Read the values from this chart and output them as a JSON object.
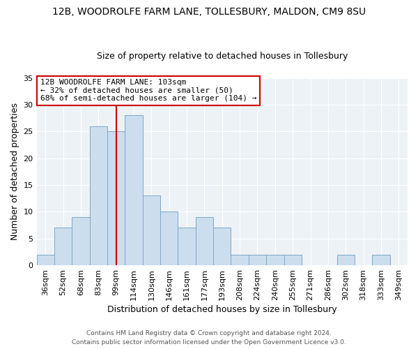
{
  "title": "12B, WOODROLFE FARM LANE, TOLLESBURY, MALDON, CM9 8SU",
  "subtitle": "Size of property relative to detached houses in Tollesbury",
  "xlabel": "Distribution of detached houses by size in Tollesbury",
  "ylabel": "Number of detached properties",
  "bar_labels": [
    "36sqm",
    "52sqm",
    "68sqm",
    "83sqm",
    "99sqm",
    "114sqm",
    "130sqm",
    "146sqm",
    "161sqm",
    "177sqm",
    "193sqm",
    "208sqm",
    "224sqm",
    "240sqm",
    "255sqm",
    "271sqm",
    "286sqm",
    "302sqm",
    "318sqm",
    "333sqm",
    "349sqm"
  ],
  "bar_values": [
    2,
    7,
    9,
    26,
    25,
    28,
    13,
    10,
    7,
    9,
    7,
    2,
    2,
    2,
    2,
    0,
    0,
    2,
    0,
    2,
    0
  ],
  "bar_color": "#ccdded",
  "bar_edgecolor": "#7aaac8",
  "vline_position": 4.5,
  "property_line_label": "12B WOODROLFE FARM LANE: 103sqm",
  "annotation_line1": "← 32% of detached houses are smaller (50)",
  "annotation_line2": "68% of semi-detached houses are larger (104) →",
  "annotation_box_color": "#ffffff",
  "annotation_box_edgecolor": "#cc0000",
  "vline_color": "#cc0000",
  "ylim": [
    0,
    35
  ],
  "yticks": [
    0,
    5,
    10,
    15,
    20,
    25,
    30,
    35
  ],
  "footer_line1": "Contains HM Land Registry data © Crown copyright and database right 2024.",
  "footer_line2": "Contains public sector information licensed under the Open Government Licence v3.0.",
  "background_color": "#edf2f7",
  "grid_color": "#ffffff",
  "title_fontsize": 10,
  "subtitle_fontsize": 9,
  "axis_label_fontsize": 9,
  "tick_fontsize": 8,
  "annotation_fontsize": 8,
  "footer_fontsize": 6.5
}
